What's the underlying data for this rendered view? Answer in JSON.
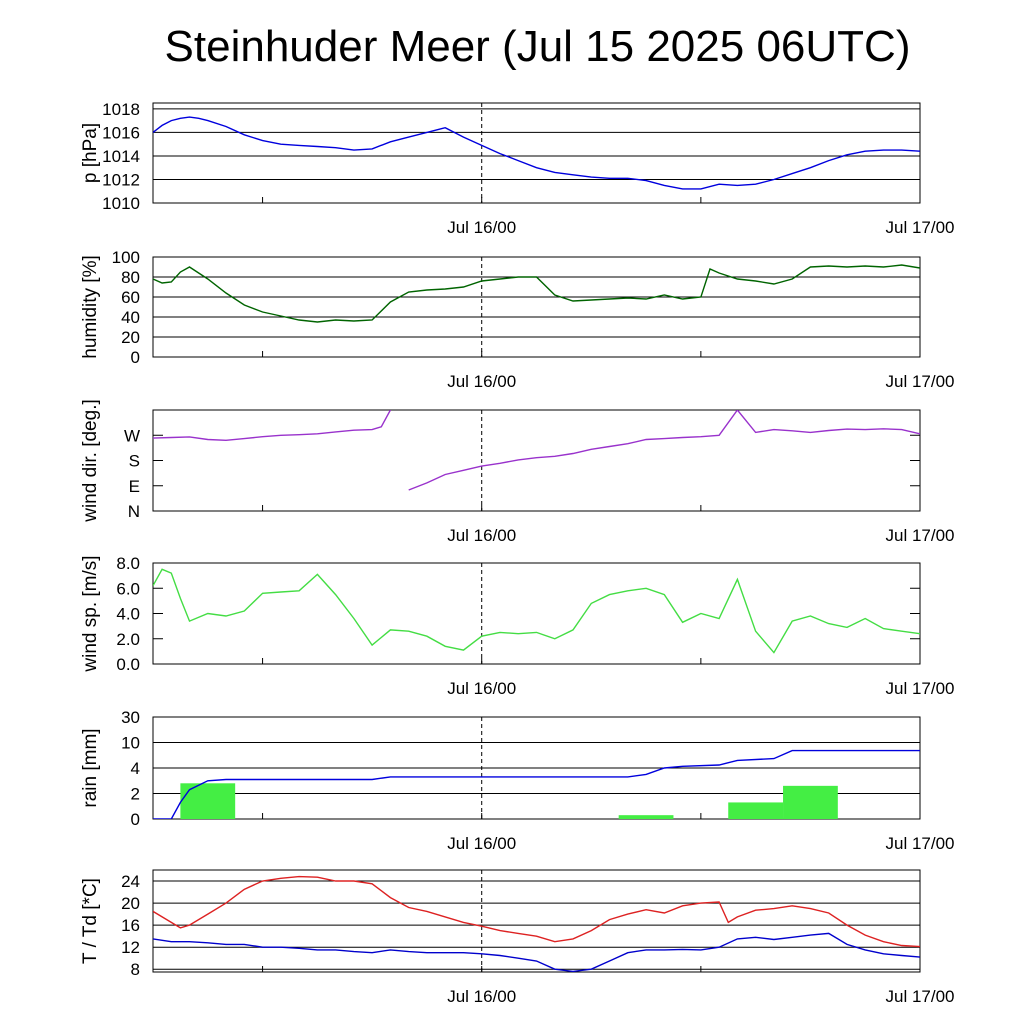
{
  "title": "Steinhuder Meer (Jul 15 2025 06UTC)",
  "x_axis": {
    "start": "Jul 15 06UTC",
    "end": "Jul 17 00UTC",
    "tick_labels": [
      {
        "x": 18,
        "label": "Jul 16/00"
      },
      {
        "x": 42,
        "label": "Jul 17/00"
      }
    ],
    "minor_ticks": [
      6,
      30
    ],
    "marker": 18
  },
  "chart_data": [
    {
      "type": "line",
      "ylabel": "p [hPa]",
      "ylim": [
        1010,
        1018.5
      ],
      "yticks": [
        1010,
        1012,
        1014,
        1016,
        1018
      ],
      "grid": true,
      "series": [
        {
          "color": "#0000dd",
          "x": [
            0,
            0.5,
            1,
            1.5,
            2,
            2.5,
            3,
            4,
            5,
            6,
            7,
            8,
            9,
            10,
            11,
            12,
            13,
            14,
            15,
            16,
            17,
            18,
            19,
            20,
            21,
            22,
            23,
            24,
            25,
            26,
            27,
            28,
            29,
            30,
            31,
            32,
            33,
            34,
            35,
            36,
            37,
            38,
            39,
            40,
            41,
            42
          ],
          "y": [
            1016,
            1016.6,
            1017,
            1017.2,
            1017.3,
            1017.2,
            1017,
            1016.5,
            1015.8,
            1015.3,
            1015,
            1014.9,
            1014.8,
            1014.7,
            1014.5,
            1014.6,
            1015.2,
            1015.6,
            1016,
            1016.4,
            1015.6,
            1014.9,
            1014.2,
            1013.6,
            1013,
            1012.6,
            1012.4,
            1012.2,
            1012.1,
            1012.1,
            1011.9,
            1011.5,
            1011.2,
            1011.2,
            1011.6,
            1011.5,
            1011.6,
            1012,
            1012.5,
            1013,
            1013.6,
            1014.1,
            1014.4,
            1014.5,
            1014.5,
            1014.4
          ]
        }
      ]
    },
    {
      "type": "line",
      "ylabel": "humidity [%]",
      "ylim": [
        0,
        100
      ],
      "yticks": [
        0,
        20,
        40,
        60,
        80,
        100
      ],
      "grid": true,
      "series": [
        {
          "color": "#006400",
          "x": [
            0,
            0.5,
            1,
            1.5,
            2,
            3,
            4,
            5,
            6,
            7,
            8,
            9,
            10,
            11,
            12,
            13,
            14,
            15,
            16,
            17,
            18,
            19,
            20,
            21,
            22,
            23,
            24,
            25,
            26,
            27,
            28,
            29,
            30,
            30.5,
            31,
            32,
            33,
            34,
            35,
            36,
            37,
            38,
            39,
            40,
            41,
            42
          ],
          "y": [
            78,
            74,
            75,
            85,
            90,
            78,
            64,
            52,
            45,
            41,
            37,
            35,
            37,
            36,
            37,
            55,
            65,
            67,
            68,
            70,
            76,
            78,
            80,
            80,
            62,
            56,
            57,
            58,
            59,
            58,
            62,
            58,
            60,
            88,
            84,
            78,
            76,
            73,
            78,
            90,
            91,
            90,
            91,
            90,
            92,
            89
          ]
        }
      ]
    },
    {
      "type": "line",
      "ylabel": "wind dir. [deg.]",
      "ylim": [
        0,
        360
      ],
      "yticks": [
        0,
        90,
        180,
        270
      ],
      "ytick_labels": [
        "N",
        "E",
        "S",
        "W"
      ],
      "grid": false,
      "series": [
        {
          "color": "#9932cc",
          "x": [
            0,
            1,
            2,
            3,
            4,
            5,
            6,
            7,
            8,
            9,
            10,
            11,
            12,
            12.5,
            13,
            14,
            15,
            16,
            17,
            18,
            19,
            20,
            21,
            22,
            23,
            24,
            25,
            26,
            27,
            28,
            29,
            30,
            31,
            32,
            33,
            34,
            35,
            36,
            37,
            38,
            39,
            40,
            41,
            42
          ],
          "y": [
            260,
            262,
            264,
            255,
            252,
            258,
            265,
            270,
            272,
            275,
            282,
            288,
            290,
            300,
            360,
            75,
            100,
            130,
            145,
            160,
            170,
            182,
            190,
            195,
            205,
            220,
            230,
            240,
            255,
            258,
            262,
            265,
            270,
            360,
            280,
            290,
            286,
            280,
            287,
            292,
            290,
            293,
            290,
            275
          ]
        }
      ]
    },
    {
      "type": "line",
      "ylabel": "wind sp. [m/s]",
      "ylim": [
        0,
        8
      ],
      "yticks": [
        0,
        2,
        4,
        6,
        8
      ],
      "ytick_labels": [
        "0.0",
        "2.0",
        "4.0",
        "6.0",
        "8.0"
      ],
      "grid": false,
      "series": [
        {
          "color": "#44dd44",
          "x": [
            0,
            0.5,
            1,
            1.5,
            2,
            3,
            4,
            5,
            6,
            7,
            8,
            9,
            10,
            11,
            12,
            13,
            14,
            15,
            16,
            17,
            18,
            19,
            20,
            21,
            22,
            23,
            24,
            25,
            26,
            27,
            28,
            29,
            30,
            31,
            32,
            33,
            34,
            35,
            36,
            37,
            38,
            39,
            40,
            41,
            42
          ],
          "y": [
            6.2,
            7.5,
            7.2,
            5.2,
            3.4,
            4,
            3.8,
            4.2,
            5.6,
            5.7,
            5.8,
            7.1,
            5.5,
            3.6,
            1.5,
            2.7,
            2.6,
            2.2,
            1.4,
            1.1,
            2.2,
            2.5,
            2.4,
            2.5,
            2.0,
            2.7,
            4.8,
            5.5,
            5.8,
            6.0,
            5.5,
            3.3,
            4.0,
            3.6,
            6.7,
            2.6,
            0.9,
            3.4,
            3.8,
            3.2,
            2.9,
            3.6,
            2.8,
            2.6,
            2.4
          ]
        }
      ]
    },
    {
      "type": "bar+line",
      "ylabel": "rain [mm]",
      "ylim": [
        0,
        30
      ],
      "yticks": [
        0,
        2,
        4,
        10,
        30
      ],
      "grid": true,
      "bars": {
        "color": "#44ee44",
        "interval_hours": 3,
        "start": [
          1.5,
          25.5,
          31.5,
          34.5
        ],
        "values": [
          2.8,
          0.3,
          1.3,
          2.6
        ]
      },
      "series": [
        {
          "color": "#0000dd",
          "x": [
            0,
            1,
            1.5,
            2,
            3,
            4,
            12,
            13,
            26,
            27,
            28,
            29,
            31,
            32,
            34,
            35,
            42
          ],
          "y": [
            0,
            0,
            1.3,
            2.3,
            3.0,
            3.1,
            3.1,
            3.3,
            3.3,
            3.5,
            4.0,
            4.4,
            4.7,
            5.8,
            6.2,
            8.1,
            8.1
          ]
        }
      ]
    },
    {
      "type": "line",
      "ylabel": "T / Td [*C]",
      "ylim": [
        7.5,
        26
      ],
      "yticks": [
        8,
        12,
        16,
        20,
        24
      ],
      "grid": true,
      "series": [
        {
          "color": "#dd2222",
          "x": [
            0,
            1,
            1.5,
            2,
            3,
            4,
            5,
            6,
            7,
            8,
            9,
            10,
            11,
            12,
            13,
            14,
            15,
            16,
            17,
            18,
            19,
            20,
            21,
            22,
            23,
            24,
            25,
            26,
            27,
            28,
            29,
            30,
            31,
            31.5,
            32,
            33,
            34,
            35,
            36,
            37,
            38,
            39,
            40,
            41,
            42
          ],
          "y": [
            18.5,
            16.5,
            15.5,
            16,
            18,
            20,
            22.5,
            24,
            24.5,
            24.8,
            24.7,
            24,
            24,
            23.5,
            21,
            19.2,
            18.5,
            17.5,
            16.5,
            15.8,
            15,
            14.5,
            14,
            13,
            13.5,
            15,
            17,
            18,
            18.8,
            18.2,
            19.5,
            20,
            20.2,
            16.5,
            17.5,
            18.7,
            19,
            19.5,
            19,
            18.2,
            16,
            14.2,
            13,
            12.3,
            12.1
          ]
        },
        {
          "color": "#0000cc",
          "x": [
            0,
            1,
            2,
            3,
            4,
            5,
            6,
            7,
            8,
            9,
            10,
            11,
            12,
            13,
            14,
            15,
            16,
            17,
            18,
            19,
            20,
            21,
            22,
            23,
            24,
            25,
            26,
            27,
            28,
            29,
            30,
            31,
            32,
            33,
            34,
            35,
            36,
            37,
            38,
            39,
            40,
            41,
            42
          ],
          "y": [
            13.5,
            13,
            13,
            12.8,
            12.5,
            12.5,
            12,
            12,
            11.8,
            11.5,
            11.5,
            11.2,
            11,
            11.5,
            11.2,
            11,
            11,
            11,
            10.8,
            10.5,
            10,
            9.5,
            8,
            7.6,
            8,
            9.5,
            11,
            11.5,
            11.5,
            11.6,
            11.5,
            12,
            13.5,
            13.8,
            13.4,
            13.8,
            14.2,
            14.5,
            12.5,
            11.5,
            10.8,
            10.5,
            10.2
          ]
        }
      ]
    }
  ]
}
